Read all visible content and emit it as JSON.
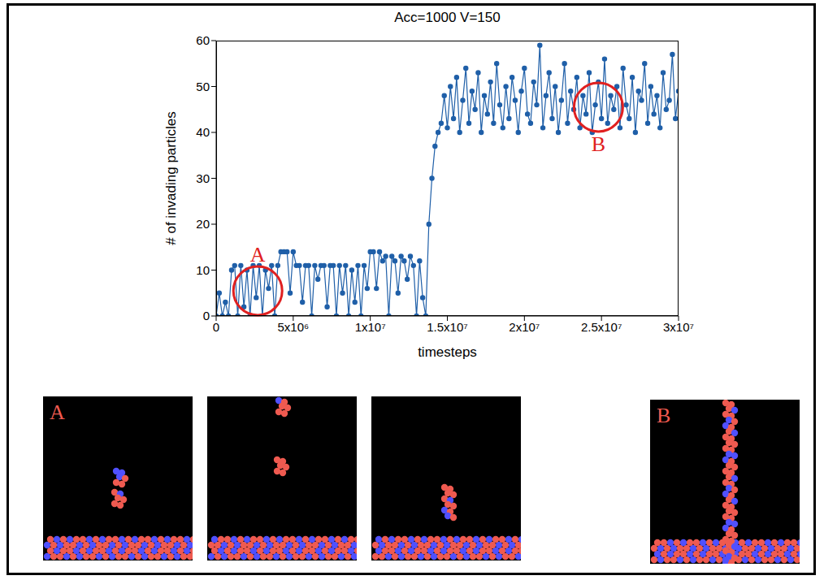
{
  "chart_data": {
    "type": "line",
    "title": "Acc=1000 V=150",
    "x_label": "timesteps",
    "y_label": "# of invading particles",
    "color": "#1f5fa8",
    "marker": "circle",
    "line_style": "solid",
    "xlim": [
      0,
      30000000
    ],
    "ylim": [
      0,
      60
    ],
    "xticks": [
      0,
      {
        "value": 5000000,
        "label": "5x10⁶"
      },
      {
        "value": 10000000,
        "label": "1x10⁷"
      },
      {
        "value": 15000000,
        "label": "1.5x10⁷"
      },
      {
        "value": 20000000,
        "label": "2x10⁷"
      },
      {
        "value": 25000000,
        "label": "2.5x10⁷"
      },
      {
        "value": 30000000,
        "label": "3x10⁷"
      }
    ],
    "yticks": [
      0,
      10,
      20,
      30,
      40,
      50,
      60
    ],
    "x": [
      0,
      200000,
      400000,
      600000,
      800000,
      1000000,
      1200000,
      1400000,
      1600000,
      1800000,
      2000000,
      2200000,
      2400000,
      2600000,
      2800000,
      3000000,
      3200000,
      3400000,
      3600000,
      3800000,
      4000000,
      4200000,
      4400000,
      4600000,
      4800000,
      5000000,
      5200000,
      5400000,
      5600000,
      5800000,
      6000000,
      6200000,
      6400000,
      6600000,
      6800000,
      7000000,
      7200000,
      7400000,
      7600000,
      7800000,
      8000000,
      8200000,
      8400000,
      8600000,
      8800000,
      9000000,
      9200000,
      9400000,
      9600000,
      9800000,
      10000000,
      10200000,
      10400000,
      10600000,
      10800000,
      11000000,
      11200000,
      11400000,
      11600000,
      11800000,
      12000000,
      12200000,
      12400000,
      12600000,
      12800000,
      13000000,
      13200000,
      13400000,
      13600000,
      13800000,
      14000000,
      14200000,
      14400000,
      14600000,
      14800000,
      15000000,
      15200000,
      15400000,
      15600000,
      15800000,
      16000000,
      16200000,
      16400000,
      16600000,
      16800000,
      17000000,
      17200000,
      17400000,
      17600000,
      17800000,
      18000000,
      18200000,
      18400000,
      18600000,
      18800000,
      19000000,
      19200000,
      19400000,
      19600000,
      19800000,
      20000000,
      20200000,
      20400000,
      20600000,
      20800000,
      21000000,
      21200000,
      21400000,
      21600000,
      21800000,
      22000000,
      22200000,
      22400000,
      22600000,
      22800000,
      23000000,
      23200000,
      23400000,
      23600000,
      23800000,
      24000000,
      24200000,
      24400000,
      24600000,
      24800000,
      25000000,
      25200000,
      25400000,
      25600000,
      25800000,
      26000000,
      26200000,
      26400000,
      26600000,
      26800000,
      27000000,
      27200000,
      27400000,
      27600000,
      27800000,
      28000000,
      28200000,
      28400000,
      28600000,
      28800000,
      29000000,
      29200000,
      29400000,
      29600000,
      29800000,
      30000000
    ],
    "values": [
      0,
      5,
      0,
      3,
      0,
      10,
      11,
      0,
      11,
      2,
      10,
      0,
      11,
      4,
      11,
      0,
      10,
      6,
      11,
      0,
      11,
      14,
      14,
      14,
      5,
      14,
      11,
      11,
      3,
      11,
      11,
      0,
      11,
      8,
      11,
      11,
      2,
      11,
      11,
      0,
      11,
      5,
      11,
      0,
      10,
      3,
      11,
      0,
      11,
      6,
      14,
      14,
      6,
      14,
      12,
      13,
      0,
      13,
      12,
      5,
      13,
      12,
      8,
      13,
      11,
      0,
      12,
      4,
      0,
      20,
      30,
      37,
      40,
      42,
      48,
      41,
      50,
      43,
      52,
      40,
      47,
      54,
      42,
      49,
      45,
      53,
      40,
      48,
      44,
      51,
      42,
      55,
      46,
      41,
      50,
      43,
      52,
      47,
      40,
      49,
      54,
      44,
      42,
      51,
      46,
      59,
      41,
      48,
      53,
      43,
      50,
      40,
      47,
      55,
      42,
      49,
      45,
      52,
      41,
      48,
      44,
      53,
      40,
      46,
      51,
      43,
      56,
      42,
      48,
      45,
      50,
      41,
      54,
      46,
      43,
      52,
      40,
      49,
      47,
      55,
      42,
      50,
      44,
      48,
      41,
      53,
      45,
      47,
      57,
      43,
      49
    ],
    "annotations": [
      {
        "label": "A",
        "x": 2700000,
        "y": 5.5,
        "color": "#e02020"
      },
      {
        "label": "B",
        "x": 24800000,
        "y": 45.5,
        "color": "#e02020"
      }
    ]
  },
  "snapshots": {
    "labels": [
      "A",
      null,
      null,
      "B"
    ]
  }
}
